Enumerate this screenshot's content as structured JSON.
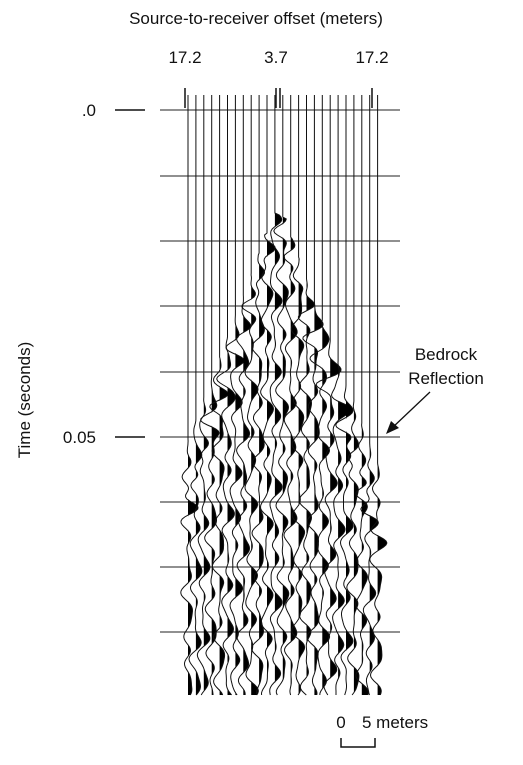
{
  "title": "Source-to-receiver offset (meters)",
  "offset_labels": [
    "17.2",
    "3.7",
    "17.2"
  ],
  "y_axis": {
    "title": "Time (seconds)",
    "ticks": [
      ".0",
      "0.05"
    ]
  },
  "annotation": [
    "Bedrock",
    "Reflection"
  ],
  "scale_bar": {
    "start": "0",
    "end": "5 meters"
  }
}
